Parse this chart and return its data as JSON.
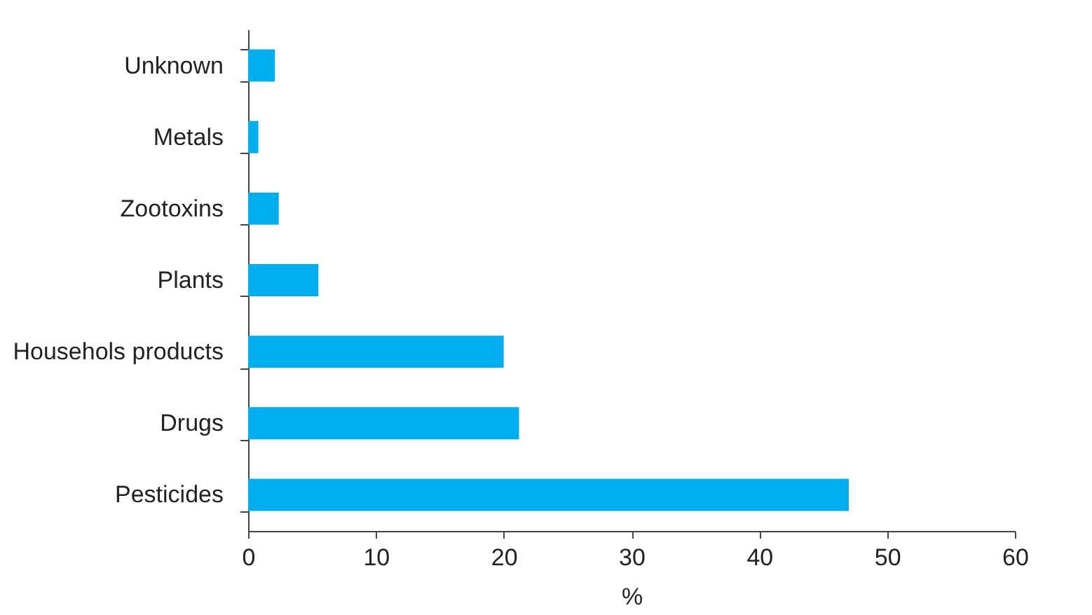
{
  "chart_data": {
    "type": "bar",
    "orientation": "horizontal",
    "xlabel": "%",
    "categories": [
      "Unknown",
      "Metals",
      "Zootoxins",
      "Plants",
      "Househols products",
      "Drugs",
      "Pesticides"
    ],
    "values": [
      2.1,
      0.8,
      2.4,
      5.5,
      20.0,
      21.2,
      47.0
    ],
    "color": "#00adee",
    "xlim": [
      0,
      60
    ],
    "xticks": [
      0,
      10,
      20,
      30,
      40,
      50,
      60
    ],
    "grid": false
  }
}
